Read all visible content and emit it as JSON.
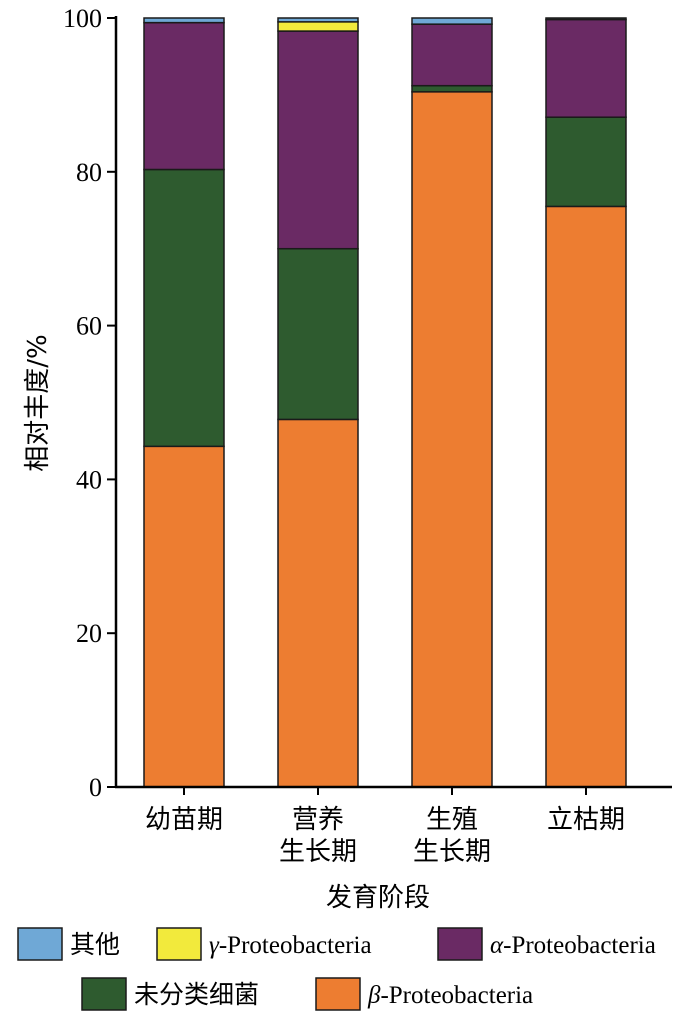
{
  "chart_data": {
    "type": "bar",
    "stacked": true,
    "categories": [
      [
        "幼苗期"
      ],
      [
        "营养",
        "生长期"
      ],
      [
        "生殖",
        "生长期"
      ],
      [
        "立枯期"
      ]
    ],
    "series": [
      {
        "name": "β-Proteobacteria",
        "greek": "β",
        "rest": "-Proteobacteria",
        "color": "#ED7D31",
        "values": [
          44.3,
          47.8,
          90.4,
          75.5
        ]
      },
      {
        "name": "未分类细菌",
        "color": "#2E5B2F",
        "values": [
          36.0,
          22.2,
          0.8,
          11.6
        ]
      },
      {
        "name": "α-Proteobacteria",
        "greek": "α",
        "rest": "-Proteobacteria",
        "color": "#6A2A64",
        "values": [
          19.1,
          28.3,
          8.0,
          12.7
        ]
      },
      {
        "name": "γ-Proteobacteria",
        "greek": "γ",
        "rest": "-Proteobacteria",
        "color": "#F2EA3C",
        "values": [
          0.0,
          1.2,
          0.0,
          0.0
        ]
      },
      {
        "name": "其他",
        "color": "#6FA8D6",
        "values": [
          0.6,
          0.5,
          0.8,
          0.2
        ]
      }
    ],
    "legend_order": [
      "其他",
      "γ-Proteobacteria",
      "α-Proteobacteria",
      "未分类细菌",
      "β-Proteobacteria"
    ],
    "xlabel": "发育阶段",
    "ylabel": "相对丰度/%",
    "ylim": [
      0,
      100
    ],
    "yticks": [
      0,
      20,
      40,
      60,
      80,
      100
    ],
    "legend_position": "bottom",
    "grid": false
  }
}
